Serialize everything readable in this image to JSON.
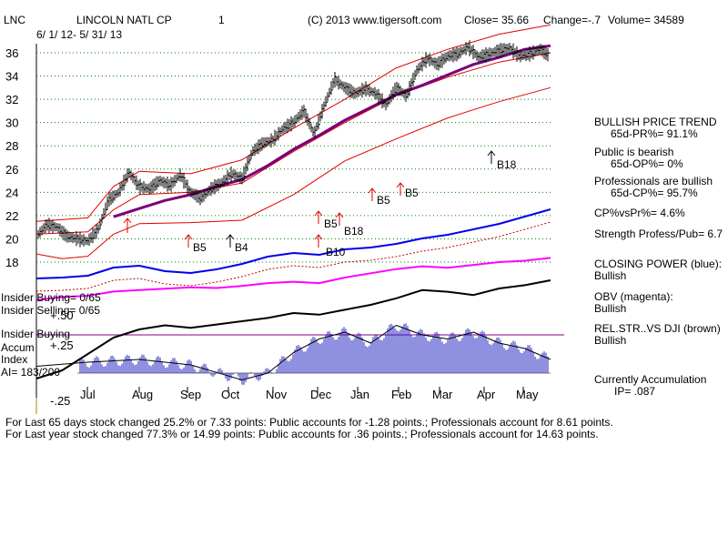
{
  "header": {
    "ticker": "LNC",
    "company": "LINCOLN NATL CP",
    "chart_no": "1",
    "copyright": "(C) 2013 www.tigersoft.com",
    "close": "Close=  35.66",
    "change": "Change=-.7",
    "volume": "Volume=  34589",
    "date_range": "6/ 1/ 12-  5/ 31/ 13"
  },
  "left_labels": {
    "insider_buying": "Insider Buying= 0/65",
    "insider_selling": "Insider Selling= 0/65",
    "insider_buying2": "Insider Buying",
    "accum": "Accum",
    "index": "Index",
    "ai": "AI= 183/200"
  },
  "right_panel": {
    "trend_title": "BULLISH PRICE TREND",
    "pr": "65d-PR%= 91.1%",
    "public_title": "Public is bearish",
    "op": "65d-OP%= 0%",
    "pros_title": "Professionals are bullish",
    "cp": "65d-CP%= 95.7%",
    "cpvspr": "CP%vsPr%=  4.6%",
    "strength": "Strength Profess/Pub= 6.7",
    "closing_power": "CLOSING POWER (blue):",
    "closing_power_v": "Bullish",
    "obv": "OBV (magenta):",
    "obv_v": "Bullish",
    "relstr": "REL.STR..VS DJI (brown)",
    "relstr_v": "Bullish",
    "accumulation": "Currently Accumulation",
    "ip": "IP=  .087"
  },
  "footer": {
    "line1": "For Last 65 days stock changed  25.2% or  7.33 points:  Public accounts for -1.28 points.;  Professionals account for  8.61 points.",
    "line2": "For Last year stock changed  77.3% or  14.99 points:  Public accounts for  .36 points.;  Professionals account for  14.63 points."
  },
  "colors": {
    "price": "#000000",
    "bands": "#e00000",
    "ma": "#7a007a",
    "closing_power": "#0000ee",
    "obv": "#ff00ff",
    "accum": "#2020c0",
    "grid": "#008000"
  },
  "chart_data": {
    "type": "line",
    "title": "LINCOLN NATL CP",
    "price_axis": {
      "ticks": [
        18,
        20,
        22,
        24,
        26,
        28,
        30,
        32,
        34,
        36
      ],
      "ylim": [
        17,
        37
      ]
    },
    "accum_axis": {
      "ticks": [
        "+.50",
        "+.25",
        "-.25"
      ],
      "ylim": [
        -0.25,
        0.5
      ]
    },
    "months": [
      "Jul",
      "Aug",
      "Sep",
      "Oct",
      "Nov",
      "Dec",
      "Jan",
      "Feb",
      "Mar",
      "Apr",
      "May"
    ],
    "series": [
      {
        "name": "Price",
        "x": [
          0,
          2,
          4,
          6,
          8,
          10,
          12,
          14,
          16,
          18,
          20,
          22,
          24,
          26,
          28,
          30,
          32,
          34,
          36,
          38,
          40,
          42,
          44,
          46,
          48,
          50,
          52,
          54,
          56,
          58,
          60,
          62,
          64,
          66,
          68,
          70,
          72,
          74,
          76,
          78,
          80,
          82,
          84,
          86,
          88,
          90,
          92,
          94,
          96,
          98,
          100
        ],
        "y": [
          20.2,
          21.2,
          21.0,
          20.2,
          20.0,
          19.8,
          20.8,
          23.3,
          24.0,
          25.7,
          24.5,
          24.3,
          25.0,
          24.6,
          25.5,
          24.0,
          23.5,
          24.3,
          24.8,
          25.6,
          25.2,
          27.5,
          28.2,
          28.5,
          29.5,
          30.0,
          31.0,
          29.0,
          31.5,
          33.7,
          33.0,
          32.5,
          32.9,
          32.5,
          31.5,
          33.0,
          32.3,
          34.5,
          35.5,
          35.0,
          35.7,
          35.9,
          36.5,
          35.6,
          35.9,
          36.2,
          36.4,
          35.7,
          35.9,
          36.3,
          35.66
        ]
      },
      {
        "name": "Upper band",
        "x": [
          0,
          10,
          15,
          20,
          30,
          40,
          50,
          60,
          70,
          80,
          90,
          100
        ],
        "y": [
          21.5,
          21.8,
          24.5,
          25.8,
          25.6,
          26.8,
          29.5,
          32.0,
          34.7,
          36.3,
          37.6,
          38.4
        ]
      },
      {
        "name": "Upper inner band",
        "x": [
          0,
          10,
          15,
          20,
          30,
          40,
          50,
          60,
          70,
          80,
          90,
          100
        ],
        "y": [
          20.4,
          20.6,
          22.5,
          23.8,
          24.0,
          24.8,
          27.5,
          30.0,
          32.3,
          33.9,
          35.2,
          36.0
        ]
      },
      {
        "name": "Moving average",
        "x": [
          15,
          20,
          25,
          30,
          35,
          40,
          45,
          50,
          55,
          60,
          65,
          70,
          75,
          80,
          85,
          90,
          95,
          100
        ],
        "y": [
          21.9,
          22.6,
          23.3,
          23.8,
          24.5,
          25.1,
          26.3,
          27.7,
          28.9,
          30.2,
          31.3,
          32.4,
          33.2,
          34.1,
          35.0,
          35.6,
          36.3,
          36.6
        ]
      },
      {
        "name": "Lower band",
        "x": [
          0,
          5,
          10,
          15,
          20,
          30,
          40,
          50,
          60,
          70,
          80,
          90,
          100
        ],
        "y": [
          18.7,
          18.3,
          18.5,
          20.4,
          21.3,
          21.4,
          21.6,
          23.8,
          26.7,
          28.6,
          30.4,
          31.8,
          33.0
        ]
      },
      {
        "name": "Closing Power",
        "x": [
          0,
          5,
          10,
          15,
          20,
          25,
          30,
          35,
          40,
          45,
          50,
          55,
          60,
          65,
          70,
          75,
          80,
          85,
          90,
          95,
          100
        ],
        "y": [
          12,
          13,
          15,
          24,
          26,
          20,
          18,
          22,
          28,
          36,
          40,
          38,
          44,
          46,
          50,
          56,
          60,
          66,
          72,
          80,
          88
        ]
      },
      {
        "name": "OBV",
        "x": [
          0,
          5,
          10,
          15,
          20,
          25,
          30,
          35,
          40,
          45,
          50,
          55,
          60,
          65,
          70,
          75,
          80,
          85,
          90,
          95,
          100
        ],
        "y": [
          20,
          24,
          26,
          32,
          34,
          36,
          38,
          37,
          40,
          44,
          46,
          44,
          52,
          58,
          64,
          68,
          66,
          70,
          74,
          76,
          80
        ]
      },
      {
        "name": "Rel.Str vs DJI",
        "x": [
          0,
          5,
          10,
          15,
          20,
          25,
          30,
          35,
          40,
          45,
          50,
          55,
          60,
          65,
          70,
          75,
          80,
          85,
          90,
          95,
          100
        ],
        "y": [
          -40,
          -30,
          -10,
          10,
          20,
          25,
          22,
          26,
          30,
          34,
          40,
          38,
          44,
          50,
          58,
          68,
          66,
          62,
          70,
          74,
          80
        ]
      },
      {
        "name": "Accumulation Index",
        "x": [
          0,
          10,
          20,
          30,
          40,
          45,
          50,
          55,
          60,
          65,
          70,
          75,
          80,
          85,
          90,
          95,
          100
        ],
        "y": [
          0.05,
          0.08,
          0.1,
          0.06,
          -0.05,
          0.0,
          0.15,
          0.25,
          0.3,
          0.22,
          0.35,
          0.28,
          0.25,
          0.3,
          0.22,
          0.18,
          0.1
        ]
      }
    ],
    "signals": [
      {
        "label": "B5",
        "x": 7,
        "dir": "up"
      },
      {
        "label": "B4",
        "x": 15,
        "dir": "up"
      },
      {
        "label": "B5",
        "x": 31,
        "dir": "up"
      },
      {
        "label": "B18",
        "x": 33,
        "dir": "up"
      },
      {
        "label": "B10",
        "x": 31,
        "dir": "up"
      },
      {
        "label": "B5",
        "x": 39,
        "dir": "up"
      },
      {
        "label": "B5",
        "x": 43,
        "dir": "up"
      },
      {
        "label": "B18",
        "x": 56,
        "dir": "up"
      }
    ]
  }
}
